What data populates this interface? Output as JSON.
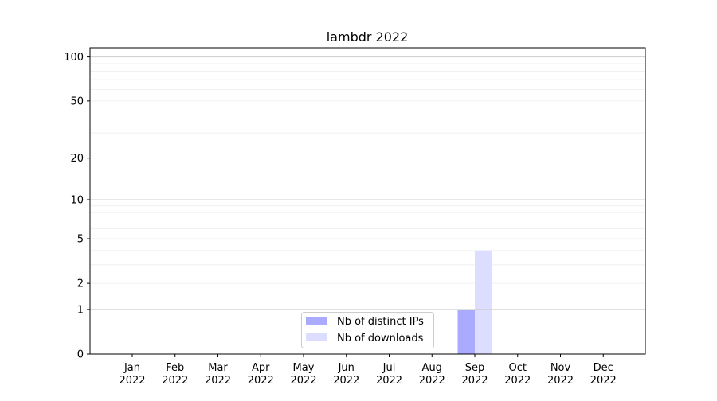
{
  "chart_data": {
    "type": "bar",
    "title": "lambdr 2022",
    "xlabel": "",
    "ylabel": "",
    "y_scale": "symlog",
    "ylim": [
      0,
      110
    ],
    "y_ticks": [
      0,
      1,
      2,
      5,
      10,
      20,
      50,
      100
    ],
    "grid": true,
    "legend_position": "lower-center",
    "categories": [
      "Jan\n2022",
      "Feb\n2022",
      "Mar\n2022",
      "Apr\n2022",
      "May\n2022",
      "Jun\n2022",
      "Jul\n2022",
      "Aug\n2022",
      "Sep\n2022",
      "Oct\n2022",
      "Nov\n2022",
      "Dec\n2022"
    ],
    "series": [
      {
        "name": "Nb of distinct IPs",
        "color": "#aaaaff",
        "values": [
          0,
          0,
          0,
          0,
          0,
          0,
          0,
          0,
          1,
          0,
          0,
          0
        ]
      },
      {
        "name": "Nb of downloads",
        "color": "#ddddff",
        "values": [
          0,
          0,
          0,
          0,
          0,
          0,
          0,
          0,
          4,
          0,
          0,
          0
        ]
      }
    ]
  }
}
